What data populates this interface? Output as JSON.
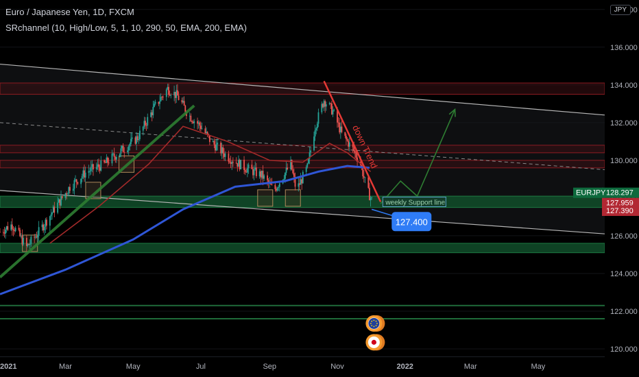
{
  "header": {
    "symbol_line": "Euro / Japanese Yen, 1D, FXCM",
    "indicator_line": "SRchannel (10, High/Low, 5, 1, 10, 290, 50, EMA, 200, EMA)"
  },
  "currency_badge": "JPY",
  "symbol_tag": "EURJPY",
  "price_tags": [
    {
      "label": "128.297",
      "color": "#0e6a3d",
      "value": 128.297
    },
    {
      "label": "127.959",
      "color": "#b22833",
      "value": 127.959
    },
    {
      "label": "127.390",
      "color": "#b22833",
      "value": 127.39
    }
  ],
  "annotations": {
    "down_trend": "down Trend",
    "weekly_support": "weekly Support line",
    "target_price": "127.400"
  },
  "icons": [
    "eu-flag-icon",
    "japan-flag-icon"
  ],
  "chart_data": {
    "type": "candlestick",
    "title": "Euro / Japanese Yen, 1D, FXCM",
    "y_axis_ticks": [
      "138.000",
      "136.000",
      "134.000",
      "132.000",
      "130.000",
      "128.000",
      "126.000",
      "124.000",
      "122.000",
      "120.000"
    ],
    "ylim": [
      119.6,
      138.5
    ],
    "x_axis_ticks": [
      "2021",
      "Mar",
      "May",
      "Jul",
      "Sep",
      "Nov",
      "2022",
      "Mar",
      "May"
    ],
    "price_path": [
      [
        "2021-01-01",
        126.2
      ],
      [
        "2021-01-12",
        126.6
      ],
      [
        "2021-01-25",
        125.4
      ],
      [
        "2021-02-05",
        126.2
      ],
      [
        "2021-02-20",
        127.5
      ],
      [
        "2021-03-05",
        128.6
      ],
      [
        "2021-03-20",
        129.4
      ],
      [
        "2021-04-05",
        129.8
      ],
      [
        "2021-04-20",
        130.5
      ],
      [
        "2021-05-05",
        131.2
      ],
      [
        "2021-05-20",
        132.8
      ],
      [
        "2021-06-01",
        133.8
      ],
      [
        "2021-06-10",
        133.4
      ],
      [
        "2021-06-20",
        132.4
      ],
      [
        "2021-07-01",
        131.8
      ],
      [
        "2021-07-10",
        131.0
      ],
      [
        "2021-07-25",
        130.2
      ],
      [
        "2021-08-10",
        129.6
      ],
      [
        "2021-08-25",
        129.2
      ],
      [
        "2021-09-05",
        128.4
      ],
      [
        "2021-09-20",
        129.8
      ],
      [
        "2021-09-25",
        128.4
      ],
      [
        "2021-10-05",
        129.6
      ],
      [
        "2021-10-12",
        131.8
      ],
      [
        "2021-10-20",
        133.2
      ],
      [
        "2021-10-28",
        132.6
      ],
      [
        "2021-11-05",
        131.4
      ],
      [
        "2021-11-15",
        130.6
      ],
      [
        "2021-11-22",
        129.8
      ],
      [
        "2021-11-28",
        128.4
      ],
      [
        "2021-12-02",
        127.9
      ]
    ],
    "ema_200": [
      [
        "2021-01-01",
        122.9
      ],
      [
        "2021-03-01",
        124.2
      ],
      [
        "2021-05-01",
        125.8
      ],
      [
        "2021-06-15",
        127.4
      ],
      [
        "2021-08-01",
        128.6
      ],
      [
        "2021-09-15",
        128.9
      ],
      [
        "2021-10-15",
        129.4
      ],
      [
        "2021-11-10",
        129.7
      ],
      [
        "2021-11-30",
        129.6
      ]
    ],
    "ema_50": [
      [
        "2021-02-15",
        125.6
      ],
      [
        "2021-04-01",
        127.6
      ],
      [
        "2021-05-15",
        129.8
      ],
      [
        "2021-06-15",
        131.8
      ],
      [
        "2021-07-25",
        131.0
      ],
      [
        "2021-09-01",
        130.0
      ],
      [
        "2021-10-01",
        129.9
      ],
      [
        "2021-10-25",
        130.9
      ],
      [
        "2021-11-10",
        130.4
      ],
      [
        "2021-12-01",
        129.4
      ]
    ],
    "channel_upper": [
      [
        "2021-01-01",
        135.1
      ],
      [
        "2022-06-30",
        132.4
      ]
    ],
    "channel_lower": [
      [
        "2021-01-01",
        128.4
      ],
      [
        "2022-06-30",
        126.1
      ]
    ],
    "channel_mid": [
      [
        "2021-01-01",
        132.0
      ],
      [
        "2022-06-30",
        129.5
      ]
    ],
    "resistance_zones": [
      [
        134.1,
        133.5
      ],
      [
        130.8,
        130.4
      ],
      [
        130.0,
        129.6
      ]
    ],
    "support_zones": [
      [
        128.1,
        127.5
      ],
      [
        125.6,
        125.1
      ]
    ],
    "horizontal_lines": [
      122.3,
      121.6
    ],
    "uptrend_line": [
      [
        "2021-01-01",
        123.8
      ],
      [
        "2021-06-25",
        132.9
      ]
    ],
    "downtrend_line": [
      [
        "2021-10-20",
        134.2
      ],
      [
        "2021-12-10",
        127.8
      ]
    ],
    "projection_path": [
      [
        "2021-12-10",
        127.7
      ],
      [
        "2021-12-28",
        128.9
      ],
      [
        "2022-01-12",
        128.1
      ],
      [
        "2022-02-15",
        132.7
      ]
    ],
    "callout_point": [
      "2021-12-02",
      127.4
    ]
  }
}
